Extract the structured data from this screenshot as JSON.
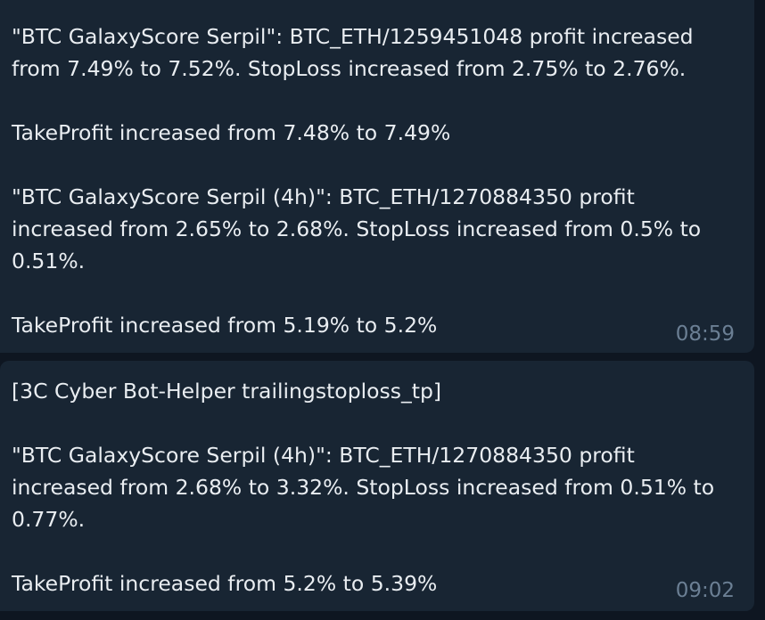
{
  "messages": [
    {
      "lines": [
        "\"BTC GalaxyScore Serpil\": BTC_ETH/1259451048 profit increased",
        "from 7.49% to 7.52%. StopLoss increased from 2.75% to 2.76%.",
        "",
        "TakeProfit increased from 7.48% to 7.49%",
        "",
        "\"BTC GalaxyScore Serpil (4h)\": BTC_ETH/1270884350 profit",
        "increased from 2.65% to 2.68%. StopLoss increased from 0.5% to",
        "0.51%.",
        "",
        "TakeProfit increased from 5.19% to 5.2%"
      ],
      "time": "08:59"
    },
    {
      "lines": [
        "[3C Cyber Bot-Helper trailingstoploss_tp]",
        "",
        "\"BTC GalaxyScore Serpil (4h)\": BTC_ETH/1270884350 profit",
        "increased from 2.68% to 3.32%. StopLoss increased from 0.51% to",
        "0.77%.",
        "",
        "TakeProfit increased from 5.2% to 5.39%"
      ],
      "time": "09:02"
    }
  ]
}
